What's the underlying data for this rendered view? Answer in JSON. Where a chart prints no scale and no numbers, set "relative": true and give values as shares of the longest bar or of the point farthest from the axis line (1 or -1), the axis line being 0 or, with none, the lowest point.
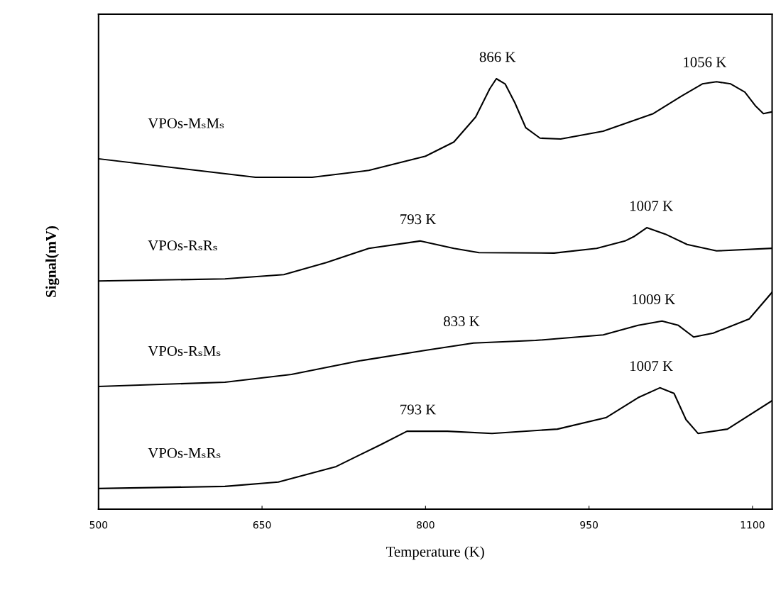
{
  "chart_data": {
    "type": "line",
    "relative": true,
    "xlabel": "Temperature (K)",
    "ylabel": "Signal(mV)",
    "xlim": [
      500,
      1118
    ],
    "xticks": [
      500,
      650,
      800,
      950,
      1100
    ],
    "grid": false,
    "legend": false,
    "marker": "none",
    "line_style": "solid",
    "series": [
      {
        "name": "VPOs-MₛMₛ",
        "color": "#000000",
        "x": [
          500,
          644,
          696,
          748,
          800,
          826,
          846,
          859,
          865,
          873,
          882,
          892,
          905,
          924,
          963,
          1009,
          1035,
          1054,
          1067,
          1080,
          1093,
          1103,
          1110,
          1118
        ],
        "values": [
          0.814,
          0.771,
          0.771,
          0.787,
          0.82,
          0.853,
          0.911,
          0.977,
          1,
          0.988,
          0.944,
          0.886,
          0.862,
          0.86,
          0.878,
          0.919,
          0.96,
          0.988,
          0.993,
          0.988,
          0.969,
          0.936,
          0.919,
          0.923
        ]
      },
      {
        "name": "VPOs-RₛRₛ",
        "color": "#000000",
        "x": [
          500,
          616,
          670,
          709,
          748,
          795,
          826,
          849,
          918,
          957,
          983,
          991,
          1003,
          1020,
          1040,
          1067,
          1118
        ],
        "values": [
          0.53,
          0.535,
          0.545,
          0.573,
          0.606,
          0.623,
          0.606,
          0.596,
          0.595,
          0.606,
          0.623,
          0.633,
          0.654,
          0.639,
          0.615,
          0.6,
          0.606
        ]
      },
      {
        "name": "VPOs-RₛMₛ",
        "color": "#000000",
        "x": [
          500,
          616,
          677,
          738,
          800,
          844,
          901,
          963,
          995,
          1017,
          1032,
          1046,
          1064,
          1097,
          1118
        ],
        "values": [
          0.285,
          0.295,
          0.313,
          0.344,
          0.369,
          0.386,
          0.392,
          0.405,
          0.427,
          0.437,
          0.427,
          0.4,
          0.409,
          0.442,
          0.504
        ]
      },
      {
        "name": "VPOs-MₛRₛ",
        "color": "#000000",
        "x": [
          500,
          616,
          665,
          718,
          759,
          783,
          820,
          861,
          921,
          966,
          995,
          1015,
          1028,
          1039,
          1050,
          1077,
          1118
        ],
        "values": [
          0.048,
          0.053,
          0.063,
          0.099,
          0.15,
          0.181,
          0.181,
          0.176,
          0.186,
          0.213,
          0.259,
          0.282,
          0.269,
          0.208,
          0.176,
          0.186,
          0.252
        ]
      }
    ],
    "annotations": [
      {
        "text": "866 K",
        "x": 866,
        "y": 1
      },
      {
        "text": "1056 K",
        "x": 1056,
        "y": 0.988
      },
      {
        "text": "793 K",
        "x": 793,
        "y": 0.623
      },
      {
        "text": "1007 K",
        "x": 1007,
        "y": 0.654
      },
      {
        "text": "833 K",
        "x": 833,
        "y": 0.386
      },
      {
        "text": "1009 K",
        "x": 1009,
        "y": 0.437
      },
      {
        "text": "793 K",
        "x": 793,
        "y": 0.181
      },
      {
        "text": "1007 K",
        "x": 1007,
        "y": 0.282
      }
    ]
  }
}
